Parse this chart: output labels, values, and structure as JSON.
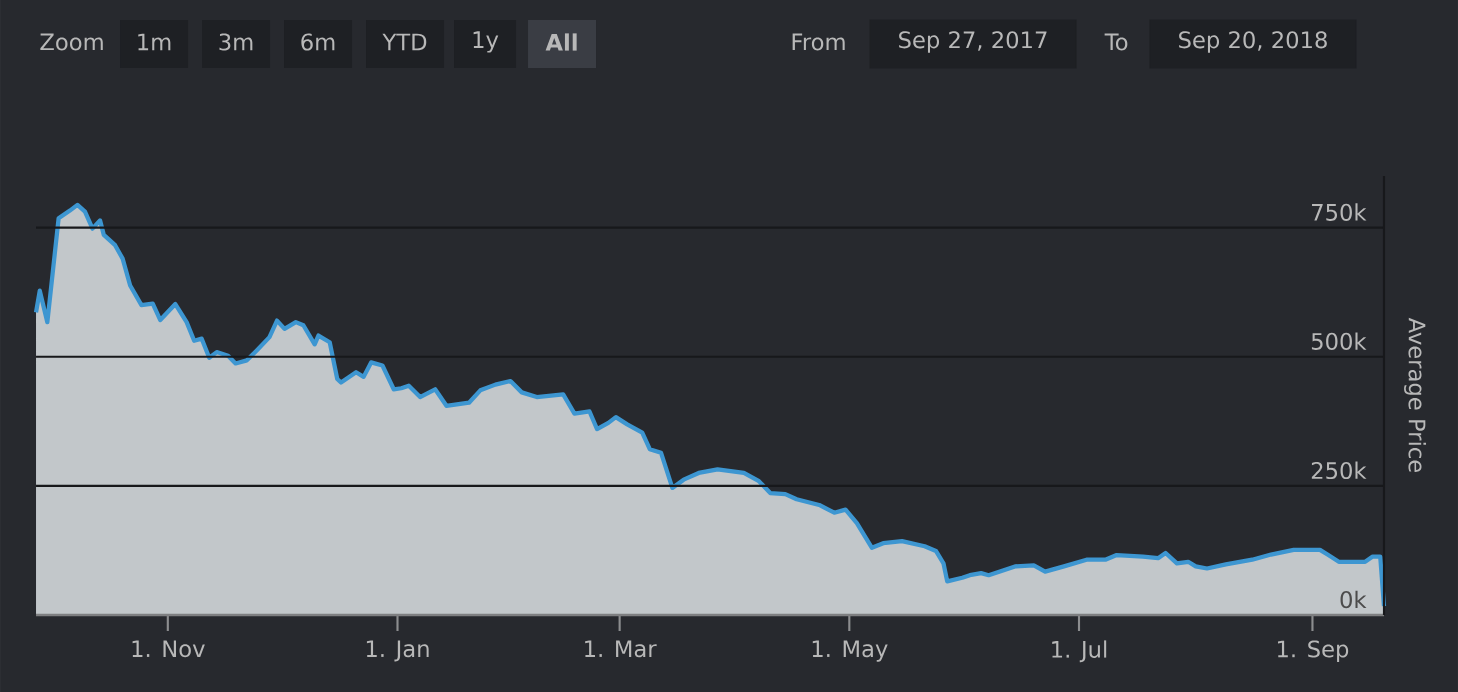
{
  "chart_data": {
    "type": "area",
    "annotations": [
      "Zoom",
      "1m",
      "3m",
      "6m",
      "YTD",
      "1y",
      "All",
      "From",
      "Sep 27, 2017",
      "To",
      "Sep 20, 2018"
    ],
    "ylabel": "Average Price",
    "x": [
      "2017-09-27",
      "2017-09-28",
      "2017-09-30",
      "2017-10-03",
      "2017-10-06",
      "2017-10-08",
      "2017-10-10",
      "2017-10-12",
      "2017-10-14",
      "2017-10-15",
      "2017-10-18",
      "2017-10-20",
      "2017-10-22",
      "2017-10-25",
      "2017-10-28",
      "2017-10-30",
      "2017-11-03",
      "2017-11-06",
      "2017-11-08",
      "2017-11-10",
      "2017-11-12",
      "2017-11-14",
      "2017-11-17",
      "2017-11-19",
      "2017-11-22",
      "2017-11-25",
      "2017-11-28",
      "2017-11-30",
      "2017-12-02",
      "2017-12-05",
      "2017-12-07",
      "2017-12-10",
      "2017-12-11",
      "2017-12-14",
      "2017-12-16",
      "2017-12-17",
      "2017-12-21",
      "2017-12-23",
      "2017-12-25",
      "2017-12-28",
      "2017-12-31",
      "2018-01-02",
      "2018-01-04",
      "2018-01-07",
      "2018-01-11",
      "2018-01-14",
      "2018-01-20",
      "2018-01-23",
      "2018-01-27",
      "2018-01-31",
      "2018-02-03",
      "2018-02-07",
      "2018-02-14",
      "2018-02-17",
      "2018-02-21",
      "2018-02-23",
      "2018-02-26",
      "2018-02-28",
      "2018-03-03",
      "2018-03-07",
      "2018-03-09",
      "2018-03-12",
      "2018-03-15",
      "2018-03-18",
      "2018-03-22",
      "2018-03-27",
      "2018-04-03",
      "2018-04-07",
      "2018-04-10",
      "2018-04-14",
      "2018-04-17",
      "2018-04-23",
      "2018-04-27",
      "2018-04-30",
      "2018-05-03",
      "2018-05-07",
      "2018-05-10",
      "2018-05-15",
      "2018-05-21",
      "2018-05-24",
      "2018-05-26",
      "2018-05-27",
      "2018-05-31",
      "2018-06-02",
      "2018-06-05",
      "2018-06-07",
      "2018-06-14",
      "2018-06-19",
      "2018-06-22",
      "2018-06-27",
      "2018-07-03",
      "2018-07-08",
      "2018-07-11",
      "2018-07-18",
      "2018-07-22",
      "2018-07-24",
      "2018-07-27",
      "2018-07-30",
      "2018-08-01",
      "2018-08-04",
      "2018-08-09",
      "2018-08-16",
      "2018-08-21",
      "2018-08-27",
      "2018-09-03",
      "2018-09-05",
      "2018-09-08",
      "2018-09-11",
      "2018-09-15",
      "2018-09-17",
      "2018-09-19",
      "2018-09-20"
    ],
    "series": [
      {
        "color": "#3d96d1",
        "values": [
          586000,
          628000,
          567000,
          768000,
          783000,
          794000,
          781000,
          748000,
          764000,
          736000,
          716000,
          690000,
          638000,
          600000,
          603000,
          571000,
          602000,
          567000,
          531000,
          535000,
          498000,
          509000,
          502000,
          487000,
          493000,
          515000,
          538000,
          570000,
          554000,
          567000,
          561000,
          524000,
          541000,
          528000,
          457000,
          450000,
          470000,
          461000,
          489000,
          483000,
          437000,
          439000,
          444000,
          422000,
          437000,
          405000,
          411000,
          435000,
          446000,
          453000,
          431000,
          422000,
          427000,
          390000,
          394000,
          360000,
          372000,
          383000,
          369000,
          353000,
          321000,
          314000,
          246000,
          262000,
          275000,
          282000,
          275000,
          259000,
          236000,
          234000,
          224000,
          213000,
          198000,
          204000,
          178000,
          130000,
          139000,
          143000,
          133000,
          124000,
          100000,
          65000,
          72000,
          77000,
          81000,
          77000,
          94000,
          96000,
          84000,
          94000,
          107000,
          107000,
          116000,
          113000,
          110000,
          120000,
          100000,
          103000,
          94000,
          90000,
          98000,
          107000,
          117000,
          126000,
          126000,
          117000,
          103000,
          103000,
          103000,
          113000,
          113000,
          17000
        ]
      }
    ],
    "xlim": [
      "2017-09-27",
      "2018-09-20"
    ],
    "xticks": [
      {
        "value": "2017-11-01",
        "label": "1. Nov"
      },
      {
        "value": "2018-01-01",
        "label": "1. Jan"
      },
      {
        "value": "2018-03-01",
        "label": "1. Mar"
      },
      {
        "value": "2018-05-01",
        "label": "1. May"
      },
      {
        "value": "2018-07-01",
        "label": "1. Jul"
      },
      {
        "value": "2018-09-01",
        "label": "1. Sep"
      }
    ],
    "ylim": [
      0,
      850000
    ],
    "yticks": [
      {
        "value": 0,
        "label": "0k"
      },
      {
        "value": 250000,
        "label": "250k"
      },
      {
        "value": 500000,
        "label": "500k"
      },
      {
        "value": 750000,
        "label": "750k"
      }
    ],
    "grid": "y"
  }
}
